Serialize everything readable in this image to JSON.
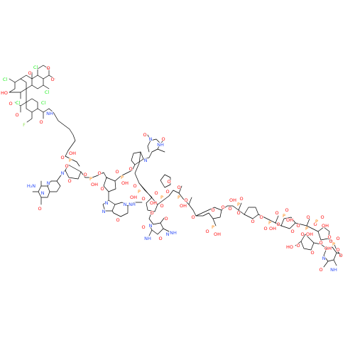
{
  "colors": {
    "bond": "#000000",
    "O": "#ff0d0d",
    "N": "#3050f8",
    "P": "#ff8000",
    "Cl": "#1ff01f",
    "F": "#90e050",
    "C": "#000000"
  },
  "molecule": {
    "atoms": [
      {
        "id": "a1",
        "el": "O",
        "text": "HO"
      },
      {
        "id": "a2",
        "el": "Cl",
        "text": "Cl"
      },
      {
        "id": "a3",
        "el": "Cl",
        "text": "Cl"
      },
      {
        "id": "a4",
        "el": "O",
        "text": "O"
      },
      {
        "id": "a5",
        "el": "Cl",
        "text": "Cl"
      },
      {
        "id": "a6",
        "el": "O",
        "text": "O"
      },
      {
        "id": "a7",
        "el": "Cl",
        "text": "Cl"
      },
      {
        "id": "a8",
        "el": "O",
        "text": "O"
      },
      {
        "id": "a9",
        "el": "O",
        "text": "O"
      },
      {
        "id": "a10",
        "el": "Cl",
        "text": "Cl"
      },
      {
        "id": "a11",
        "el": "F",
        "text": "F"
      },
      {
        "id": "a12",
        "el": "O",
        "text": "O"
      },
      {
        "id": "a13",
        "el": "N",
        "text": "NH"
      },
      {
        "id": "a14",
        "el": "O",
        "text": "O"
      },
      {
        "id": "a15",
        "el": "P",
        "text": "P"
      },
      {
        "id": "a16",
        "el": "O",
        "text": "O"
      },
      {
        "id": "a17",
        "el": "O",
        "text": "OH"
      },
      {
        "id": "a18",
        "el": "O",
        "text": "O"
      },
      {
        "id": "a19",
        "el": "O",
        "text": "O"
      },
      {
        "id": "a20",
        "el": "P",
        "text": "P"
      },
      {
        "id": "a21",
        "el": "O",
        "text": "O"
      },
      {
        "id": "a22",
        "el": "O",
        "text": "OH"
      },
      {
        "id": "a23",
        "el": "O",
        "text": "O"
      },
      {
        "id": "a24",
        "el": "P",
        "text": "P"
      },
      {
        "id": "a25",
        "el": "O",
        "text": "O"
      },
      {
        "id": "a26",
        "el": "O",
        "text": "OH"
      },
      {
        "id": "a27",
        "el": "O",
        "text": "O"
      },
      {
        "id": "a28",
        "el": "N",
        "text": "N"
      },
      {
        "id": "a29",
        "el": "N",
        "text": "NH"
      },
      {
        "id": "a30",
        "el": "O",
        "text": "O"
      },
      {
        "id": "a31",
        "el": "N",
        "text": "N"
      },
      {
        "id": "a32",
        "el": "O",
        "text": "O"
      },
      {
        "id": "a33",
        "el": "N",
        "text": "N"
      },
      {
        "id": "a34",
        "el": "N",
        "text": "N"
      },
      {
        "id": "a35",
        "el": "N",
        "text": "H₂N"
      },
      {
        "id": "a36",
        "el": "O",
        "text": "O"
      },
      {
        "id": "a37",
        "el": "N",
        "text": "N"
      },
      {
        "id": "a38",
        "el": "O",
        "text": "O"
      },
      {
        "id": "a39",
        "el": "N",
        "text": "N"
      },
      {
        "id": "a40",
        "el": "N",
        "text": "N"
      },
      {
        "id": "a41",
        "el": "N",
        "text": "N"
      },
      {
        "id": "a42",
        "el": "O",
        "text": "O"
      },
      {
        "id": "a43",
        "el": "N",
        "text": "NH"
      },
      {
        "id": "a44",
        "el": "P",
        "text": "P"
      },
      {
        "id": "a45",
        "el": "O",
        "text": "O"
      },
      {
        "id": "a46",
        "el": "O",
        "text": "OH"
      },
      {
        "id": "a47",
        "el": "O",
        "text": "O"
      },
      {
        "id": "a48",
        "el": "O",
        "text": "O"
      },
      {
        "id": "a49",
        "el": "N",
        "text": "N"
      },
      {
        "id": "a50",
        "el": "O",
        "text": "O"
      },
      {
        "id": "a51",
        "el": "N",
        "text": "NH"
      },
      {
        "id": "a52",
        "el": "O",
        "text": "O"
      },
      {
        "id": "a53",
        "el": "O",
        "text": "O"
      },
      {
        "id": "a54",
        "el": "P",
        "text": "P"
      },
      {
        "id": "a55",
        "el": "O",
        "text": "O"
      },
      {
        "id": "a56",
        "el": "O",
        "text": "OH"
      },
      {
        "id": "a57",
        "el": "O",
        "text": "O"
      },
      {
        "id": "a58",
        "el": "O",
        "text": "O"
      },
      {
        "id": "a59",
        "el": "P",
        "text": "P"
      },
      {
        "id": "a60",
        "el": "O",
        "text": "O"
      },
      {
        "id": "a61",
        "el": "O",
        "text": "OH"
      },
      {
        "id": "a62",
        "el": "O",
        "text": "O"
      },
      {
        "id": "a63",
        "el": "O",
        "text": "O"
      },
      {
        "id": "a64",
        "el": "O",
        "text": "O"
      },
      {
        "id": "a65",
        "el": "P",
        "text": "P"
      },
      {
        "id": "a66",
        "el": "O",
        "text": "O"
      },
      {
        "id": "a67",
        "el": "O",
        "text": "OH"
      },
      {
        "id": "a68",
        "el": "O",
        "text": "O"
      },
      {
        "id": "a69",
        "el": "N",
        "text": "N"
      },
      {
        "id": "a70",
        "el": "O",
        "text": "O"
      },
      {
        "id": "a71",
        "el": "N",
        "text": "NH"
      },
      {
        "id": "a72",
        "el": "O",
        "text": "O"
      },
      {
        "id": "a73",
        "el": "O",
        "text": "O"
      },
      {
        "id": "a74",
        "el": "P",
        "text": "P"
      },
      {
        "id": "a75",
        "el": "O",
        "text": "O"
      },
      {
        "id": "a76",
        "el": "O",
        "text": "OH"
      },
      {
        "id": "a77",
        "el": "O",
        "text": "O"
      },
      {
        "id": "a78",
        "el": "O",
        "text": "O"
      },
      {
        "id": "a79",
        "el": "P",
        "text": "P"
      },
      {
        "id": "a80",
        "el": "O",
        "text": "O"
      },
      {
        "id": "a81",
        "el": "O",
        "text": "OH"
      },
      {
        "id": "a82",
        "el": "O",
        "text": "O"
      },
      {
        "id": "a83",
        "el": "O",
        "text": "O"
      },
      {
        "id": "a84",
        "el": "P",
        "text": "P"
      },
      {
        "id": "a85",
        "el": "O",
        "text": "O"
      },
      {
        "id": "a86",
        "el": "O",
        "text": "OH"
      },
      {
        "id": "a87",
        "el": "O",
        "text": "O"
      },
      {
        "id": "a88",
        "el": "O",
        "text": "O"
      },
      {
        "id": "a89",
        "el": "P",
        "text": "P"
      },
      {
        "id": "a90",
        "el": "O",
        "text": "O"
      },
      {
        "id": "a91",
        "el": "O",
        "text": "OH"
      },
      {
        "id": "a92",
        "el": "O",
        "text": "O"
      },
      {
        "id": "a93",
        "el": "O",
        "text": "O"
      },
      {
        "id": "a94",
        "el": "O",
        "text": "O"
      },
      {
        "id": "a95",
        "el": "P",
        "text": "P"
      },
      {
        "id": "a96",
        "el": "O",
        "text": "O"
      },
      {
        "id": "a97",
        "el": "O",
        "text": "OH"
      },
      {
        "id": "a98",
        "el": "O",
        "text": "O"
      },
      {
        "id": "a99",
        "el": "O",
        "text": "O"
      },
      {
        "id": "a100",
        "el": "P",
        "text": "P"
      },
      {
        "id": "a101",
        "el": "O",
        "text": "O"
      },
      {
        "id": "a102",
        "el": "O",
        "text": "OH"
      },
      {
        "id": "a103",
        "el": "O",
        "text": "O"
      },
      {
        "id": "a104",
        "el": "O",
        "text": "O"
      },
      {
        "id": "a105",
        "el": "O",
        "text": "HO"
      },
      {
        "id": "a106",
        "el": "O",
        "text": "O"
      },
      {
        "id": "a107",
        "el": "N",
        "text": "N"
      },
      {
        "id": "a108",
        "el": "O",
        "text": "O"
      },
      {
        "id": "a109",
        "el": "N",
        "text": "NH"
      },
      {
        "id": "a110",
        "el": "O",
        "text": "O"
      }
    ]
  }
}
